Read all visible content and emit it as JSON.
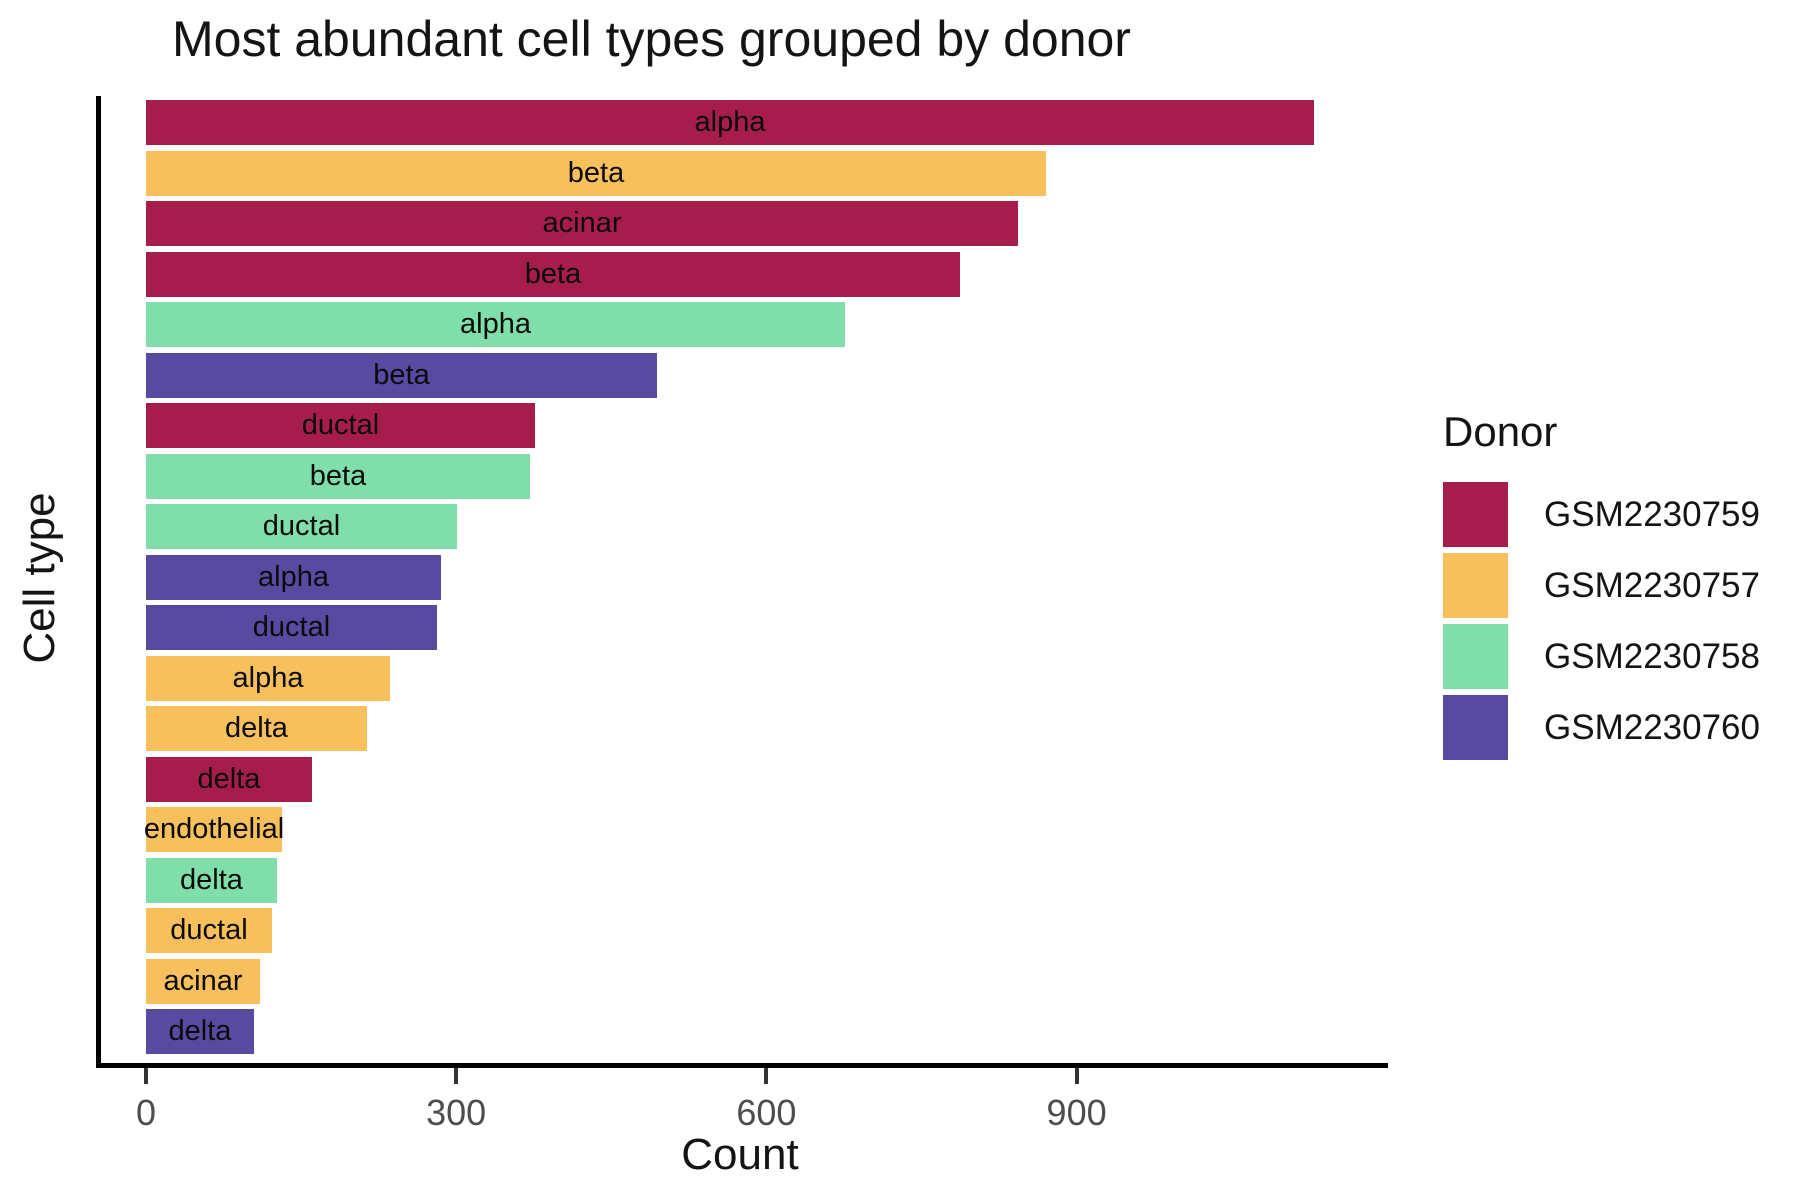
{
  "chart_data": {
    "type": "bar",
    "orientation": "horizontal",
    "title": "Most abundant cell types grouped by donor",
    "xlabel": "Count",
    "ylabel": "Cell type",
    "x_ticks": [
      0,
      300,
      600,
      900
    ],
    "xlim": [
      0,
      1195
    ],
    "grid": false,
    "legend": {
      "title": "Donor",
      "position": "right",
      "entries": [
        {
          "label": "GSM2230759",
          "color": "#A61C4D"
        },
        {
          "label": "GSM2230757",
          "color": "#F7C05C"
        },
        {
          "label": "GSM2230758",
          "color": "#7FDEAA"
        },
        {
          "label": "GSM2230760",
          "color": "#584AA0"
        }
      ]
    },
    "bars": [
      {
        "cell_type": "alpha",
        "donor": "GSM2230759",
        "value": 1130
      },
      {
        "cell_type": "beta",
        "donor": "GSM2230757",
        "value": 870
      },
      {
        "cell_type": "acinar",
        "donor": "GSM2230759",
        "value": 843
      },
      {
        "cell_type": "beta",
        "donor": "GSM2230759",
        "value": 787
      },
      {
        "cell_type": "alpha",
        "donor": "GSM2230758",
        "value": 676
      },
      {
        "cell_type": "beta",
        "donor": "GSM2230760",
        "value": 494
      },
      {
        "cell_type": "ductal",
        "donor": "GSM2230759",
        "value": 376
      },
      {
        "cell_type": "beta",
        "donor": "GSM2230758",
        "value": 371
      },
      {
        "cell_type": "ductal",
        "donor": "GSM2230758",
        "value": 301
      },
      {
        "cell_type": "alpha",
        "donor": "GSM2230760",
        "value": 285
      },
      {
        "cell_type": "ductal",
        "donor": "GSM2230760",
        "value": 281
      },
      {
        "cell_type": "alpha",
        "donor": "GSM2230757",
        "value": 236
      },
      {
        "cell_type": "delta",
        "donor": "GSM2230757",
        "value": 214
      },
      {
        "cell_type": "delta",
        "donor": "GSM2230759",
        "value": 161
      },
      {
        "cell_type": "endothelial",
        "donor": "GSM2230757",
        "value": 132
      },
      {
        "cell_type": "delta",
        "donor": "GSM2230758",
        "value": 127
      },
      {
        "cell_type": "ductal",
        "donor": "GSM2230757",
        "value": 122
      },
      {
        "cell_type": "acinar",
        "donor": "GSM2230757",
        "value": 110
      },
      {
        "cell_type": "delta",
        "donor": "GSM2230760",
        "value": 104
      }
    ]
  }
}
